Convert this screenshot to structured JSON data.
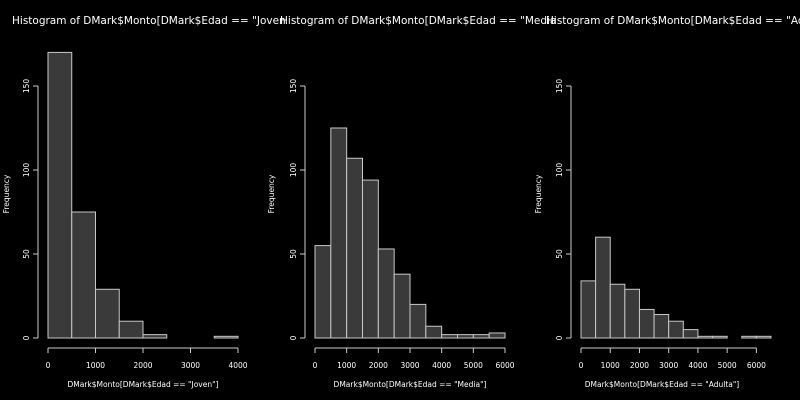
{
  "background": "#000000",
  "bar_fill": "#3a3a3a",
  "bar_stroke": "#c8c8c8",
  "chart_data": [
    {
      "type": "bar",
      "title": "Histogram of DMark$Monto[DMark$Edad == \"Joven",
      "xlabel": "DMark$Monto[DMark$Edad == \"Joven\"]",
      "ylabel": "Frequency",
      "bin_edges": [
        0,
        500,
        1000,
        1500,
        2000,
        2500,
        3000,
        3500,
        4000
      ],
      "values": [
        170,
        75,
        29,
        10,
        2,
        0,
        0,
        1
      ],
      "xlim": [
        0,
        4000
      ],
      "ylim": [
        0,
        150
      ],
      "xticks": [
        0,
        1000,
        2000,
        3000,
        4000
      ],
      "yticks": [
        0,
        50,
        100,
        150
      ]
    },
    {
      "type": "bar",
      "title": "Histogram of DMark$Monto[DMark$Edad == \"Media",
      "xlabel": "DMark$Monto[DMark$Edad == \"Media\"]",
      "ylabel": "Frequency",
      "bin_edges": [
        0,
        500,
        1000,
        1500,
        2000,
        2500,
        3000,
        3500,
        4000,
        4500,
        5000,
        5500,
        6000
      ],
      "values": [
        55,
        125,
        107,
        94,
        53,
        38,
        20,
        7,
        2,
        2,
        2,
        3
      ],
      "xlim": [
        0,
        6000
      ],
      "ylim": [
        0,
        150
      ],
      "xticks": [
        0,
        1000,
        2000,
        3000,
        4000,
        5000,
        6000
      ],
      "yticks": [
        0,
        50,
        100,
        150
      ]
    },
    {
      "type": "bar",
      "title": "Histogram of DMark$Monto[DMark$Edad == \"Adulta",
      "xlabel": "DMark$Monto[DMark$Edad == \"Adulta\"]",
      "ylabel": "Frequency",
      "bin_edges": [
        0,
        500,
        1000,
        1500,
        2000,
        2500,
        3000,
        3500,
        4000,
        4500,
        5000,
        5500,
        6000,
        6500
      ],
      "values": [
        34,
        60,
        32,
        29,
        17,
        14,
        10,
        5,
        1,
        1,
        0,
        1,
        1
      ],
      "xlim": [
        0,
        6500
      ],
      "ylim": [
        0,
        150
      ],
      "xticks": [
        0,
        1000,
        2000,
        3000,
        4000,
        5000,
        6000
      ],
      "yticks": [
        0,
        50,
        100,
        150
      ]
    }
  ]
}
